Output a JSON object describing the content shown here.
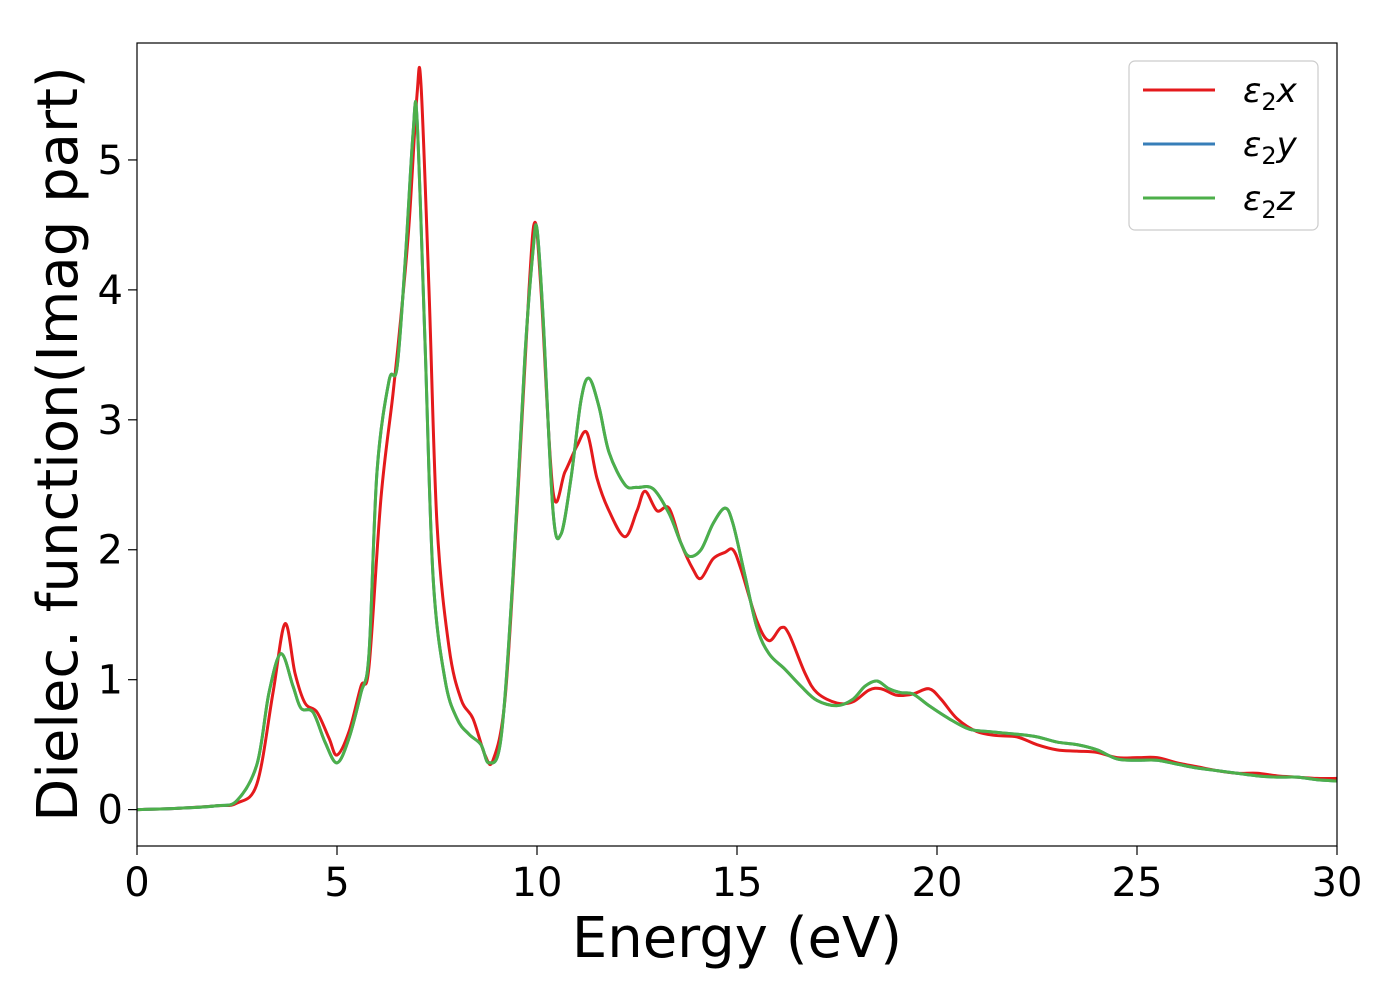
{
  "chart_data": {
    "type": "line",
    "xlabel": "Energy (eV)",
    "ylabel": "Dielec. function(Imag part)",
    "xlim": [
      0,
      30
    ],
    "ylim": [
      -0.28,
      5.9
    ],
    "xticks": [
      0,
      5,
      10,
      15,
      20,
      25,
      30
    ],
    "yticks": [
      0,
      1,
      2,
      3,
      4,
      5
    ],
    "grid": false,
    "legend_position": "top-right",
    "series": [
      {
        "name": "ε₂x",
        "legend": {
          "base": "ε",
          "sub": "2",
          "suffix": "x"
        },
        "color": "#e41a1c",
        "points": [
          [
            0,
            0.0
          ],
          [
            1,
            0.01
          ],
          [
            2,
            0.03
          ],
          [
            2.5,
            0.05
          ],
          [
            3,
            0.2
          ],
          [
            3.4,
            0.9
          ],
          [
            3.7,
            1.43
          ],
          [
            3.95,
            1.05
          ],
          [
            4.2,
            0.82
          ],
          [
            4.5,
            0.75
          ],
          [
            4.8,
            0.55
          ],
          [
            5,
            0.42
          ],
          [
            5.3,
            0.6
          ],
          [
            5.6,
            0.95
          ],
          [
            5.8,
            1.1
          ],
          [
            6.1,
            2.4
          ],
          [
            6.4,
            3.2
          ],
          [
            6.6,
            3.8
          ],
          [
            6.8,
            4.5
          ],
          [
            7.0,
            5.5
          ],
          [
            7.1,
            5.58
          ],
          [
            7.3,
            4.0
          ],
          [
            7.5,
            2.2
          ],
          [
            7.8,
            1.25
          ],
          [
            8.1,
            0.85
          ],
          [
            8.4,
            0.7
          ],
          [
            8.7,
            0.42
          ],
          [
            8.9,
            0.38
          ],
          [
            9.2,
            0.85
          ],
          [
            9.5,
            2.3
          ],
          [
            9.8,
            4.0
          ],
          [
            9.95,
            4.52
          ],
          [
            10.1,
            4.0
          ],
          [
            10.4,
            2.45
          ],
          [
            10.7,
            2.6
          ],
          [
            11.0,
            2.8
          ],
          [
            11.25,
            2.9
          ],
          [
            11.5,
            2.55
          ],
          [
            11.8,
            2.3
          ],
          [
            12.2,
            2.1
          ],
          [
            12.5,
            2.3
          ],
          [
            12.7,
            2.45
          ],
          [
            13.0,
            2.3
          ],
          [
            13.3,
            2.32
          ],
          [
            13.6,
            2.05
          ],
          [
            13.9,
            1.85
          ],
          [
            14.1,
            1.78
          ],
          [
            14.4,
            1.93
          ],
          [
            14.7,
            1.98
          ],
          [
            14.9,
            2.0
          ],
          [
            15.1,
            1.85
          ],
          [
            15.5,
            1.45
          ],
          [
            15.8,
            1.3
          ],
          [
            16.1,
            1.4
          ],
          [
            16.3,
            1.35
          ],
          [
            16.7,
            1.05
          ],
          [
            17.0,
            0.9
          ],
          [
            17.5,
            0.82
          ],
          [
            17.9,
            0.83
          ],
          [
            18.3,
            0.92
          ],
          [
            18.6,
            0.93
          ],
          [
            19.0,
            0.88
          ],
          [
            19.4,
            0.89
          ],
          [
            19.8,
            0.93
          ],
          [
            20.1,
            0.85
          ],
          [
            20.5,
            0.7
          ],
          [
            21.0,
            0.6
          ],
          [
            21.5,
            0.57
          ],
          [
            22.0,
            0.56
          ],
          [
            22.5,
            0.5
          ],
          [
            23.0,
            0.46
          ],
          [
            23.5,
            0.45
          ],
          [
            24.0,
            0.44
          ],
          [
            24.5,
            0.4
          ],
          [
            25.0,
            0.4
          ],
          [
            25.5,
            0.4
          ],
          [
            26.0,
            0.36
          ],
          [
            26.5,
            0.33
          ],
          [
            27.0,
            0.3
          ],
          [
            27.5,
            0.28
          ],
          [
            28.0,
            0.28
          ],
          [
            28.5,
            0.26
          ],
          [
            29.0,
            0.25
          ],
          [
            29.5,
            0.24
          ],
          [
            30.0,
            0.24
          ]
        ]
      },
      {
        "name": "ε₂y",
        "legend": {
          "base": "ε",
          "sub": "2",
          "suffix": "y"
        },
        "color": "#377eb8",
        "points": [
          [
            0,
            0.0
          ],
          [
            1,
            0.01
          ],
          [
            2,
            0.03
          ],
          [
            2.5,
            0.07
          ],
          [
            3,
            0.35
          ],
          [
            3.3,
            0.9
          ],
          [
            3.6,
            1.2
          ],
          [
            3.9,
            0.95
          ],
          [
            4.1,
            0.78
          ],
          [
            4.4,
            0.75
          ],
          [
            4.7,
            0.52
          ],
          [
            5,
            0.36
          ],
          [
            5.3,
            0.55
          ],
          [
            5.6,
            0.9
          ],
          [
            5.8,
            1.2
          ],
          [
            6.0,
            2.6
          ],
          [
            6.3,
            3.3
          ],
          [
            6.5,
            3.4
          ],
          [
            6.7,
            4.2
          ],
          [
            6.9,
            5.2
          ],
          [
            7.0,
            5.32
          ],
          [
            7.2,
            3.6
          ],
          [
            7.4,
            1.8
          ],
          [
            7.7,
            1.0
          ],
          [
            8.0,
            0.7
          ],
          [
            8.3,
            0.58
          ],
          [
            8.6,
            0.5
          ],
          [
            8.8,
            0.36
          ],
          [
            9.1,
            0.55
          ],
          [
            9.4,
            1.8
          ],
          [
            9.7,
            3.5
          ],
          [
            9.9,
            4.3
          ],
          [
            10.0,
            4.47
          ],
          [
            10.15,
            3.8
          ],
          [
            10.4,
            2.3
          ],
          [
            10.6,
            2.12
          ],
          [
            10.85,
            2.55
          ],
          [
            11.1,
            3.15
          ],
          [
            11.3,
            3.32
          ],
          [
            11.55,
            3.1
          ],
          [
            11.8,
            2.75
          ],
          [
            12.2,
            2.5
          ],
          [
            12.5,
            2.48
          ],
          [
            12.9,
            2.47
          ],
          [
            13.3,
            2.28
          ],
          [
            13.6,
            2.05
          ],
          [
            13.8,
            1.95
          ],
          [
            14.1,
            2.0
          ],
          [
            14.4,
            2.2
          ],
          [
            14.7,
            2.32
          ],
          [
            14.9,
            2.2
          ],
          [
            15.2,
            1.8
          ],
          [
            15.5,
            1.4
          ],
          [
            15.8,
            1.2
          ],
          [
            16.2,
            1.08
          ],
          [
            16.6,
            0.95
          ],
          [
            17.0,
            0.84
          ],
          [
            17.5,
            0.8
          ],
          [
            17.9,
            0.85
          ],
          [
            18.2,
            0.95
          ],
          [
            18.5,
            0.99
          ],
          [
            18.8,
            0.93
          ],
          [
            19.1,
            0.9
          ],
          [
            19.4,
            0.89
          ],
          [
            19.8,
            0.8
          ],
          [
            20.3,
            0.7
          ],
          [
            20.8,
            0.62
          ],
          [
            21.3,
            0.6
          ],
          [
            22.0,
            0.58
          ],
          [
            22.5,
            0.56
          ],
          [
            23.0,
            0.52
          ],
          [
            23.5,
            0.5
          ],
          [
            24.0,
            0.46
          ],
          [
            24.5,
            0.39
          ],
          [
            25.0,
            0.38
          ],
          [
            25.5,
            0.38
          ],
          [
            26.0,
            0.35
          ],
          [
            26.5,
            0.32
          ],
          [
            27.0,
            0.3
          ],
          [
            27.5,
            0.28
          ],
          [
            28.0,
            0.26
          ],
          [
            28.5,
            0.25
          ],
          [
            29.0,
            0.25
          ],
          [
            29.5,
            0.23
          ],
          [
            30.0,
            0.22
          ]
        ]
      },
      {
        "name": "ε₂z",
        "legend": {
          "base": "ε",
          "sub": "2",
          "suffix": "z"
        },
        "color": "#4daf4a",
        "points": [
          [
            0,
            0.0
          ],
          [
            1,
            0.01
          ],
          [
            2,
            0.03
          ],
          [
            2.5,
            0.07
          ],
          [
            3,
            0.35
          ],
          [
            3.3,
            0.9
          ],
          [
            3.6,
            1.2
          ],
          [
            3.9,
            0.95
          ],
          [
            4.1,
            0.78
          ],
          [
            4.4,
            0.75
          ],
          [
            4.7,
            0.52
          ],
          [
            5,
            0.36
          ],
          [
            5.3,
            0.55
          ],
          [
            5.6,
            0.9
          ],
          [
            5.8,
            1.2
          ],
          [
            6.0,
            2.6
          ],
          [
            6.3,
            3.3
          ],
          [
            6.5,
            3.4
          ],
          [
            6.7,
            4.2
          ],
          [
            6.9,
            5.2
          ],
          [
            7.0,
            5.32
          ],
          [
            7.2,
            3.6
          ],
          [
            7.4,
            1.8
          ],
          [
            7.7,
            1.0
          ],
          [
            8.0,
            0.7
          ],
          [
            8.3,
            0.58
          ],
          [
            8.6,
            0.5
          ],
          [
            8.8,
            0.36
          ],
          [
            9.1,
            0.55
          ],
          [
            9.4,
            1.8
          ],
          [
            9.7,
            3.5
          ],
          [
            9.9,
            4.3
          ],
          [
            10.0,
            4.47
          ],
          [
            10.15,
            3.8
          ],
          [
            10.4,
            2.3
          ],
          [
            10.6,
            2.12
          ],
          [
            10.85,
            2.55
          ],
          [
            11.1,
            3.15
          ],
          [
            11.3,
            3.32
          ],
          [
            11.55,
            3.1
          ],
          [
            11.8,
            2.75
          ],
          [
            12.2,
            2.5
          ],
          [
            12.5,
            2.48
          ],
          [
            12.9,
            2.47
          ],
          [
            13.3,
            2.28
          ],
          [
            13.6,
            2.05
          ],
          [
            13.8,
            1.95
          ],
          [
            14.1,
            2.0
          ],
          [
            14.4,
            2.2
          ],
          [
            14.7,
            2.32
          ],
          [
            14.9,
            2.2
          ],
          [
            15.2,
            1.8
          ],
          [
            15.5,
            1.4
          ],
          [
            15.8,
            1.2
          ],
          [
            16.2,
            1.08
          ],
          [
            16.6,
            0.95
          ],
          [
            17.0,
            0.84
          ],
          [
            17.5,
            0.8
          ],
          [
            17.9,
            0.85
          ],
          [
            18.2,
            0.95
          ],
          [
            18.5,
            0.99
          ],
          [
            18.8,
            0.93
          ],
          [
            19.1,
            0.9
          ],
          [
            19.4,
            0.89
          ],
          [
            19.8,
            0.8
          ],
          [
            20.3,
            0.7
          ],
          [
            20.8,
            0.62
          ],
          [
            21.3,
            0.6
          ],
          [
            22.0,
            0.58
          ],
          [
            22.5,
            0.56
          ],
          [
            23.0,
            0.52
          ],
          [
            23.5,
            0.5
          ],
          [
            24.0,
            0.46
          ],
          [
            24.5,
            0.39
          ],
          [
            25.0,
            0.38
          ],
          [
            25.5,
            0.38
          ],
          [
            26.0,
            0.35
          ],
          [
            26.5,
            0.32
          ],
          [
            27.0,
            0.3
          ],
          [
            27.5,
            0.28
          ],
          [
            28.0,
            0.26
          ],
          [
            28.5,
            0.25
          ],
          [
            29.0,
            0.25
          ],
          [
            29.5,
            0.23
          ],
          [
            30.0,
            0.22
          ]
        ]
      }
    ]
  }
}
